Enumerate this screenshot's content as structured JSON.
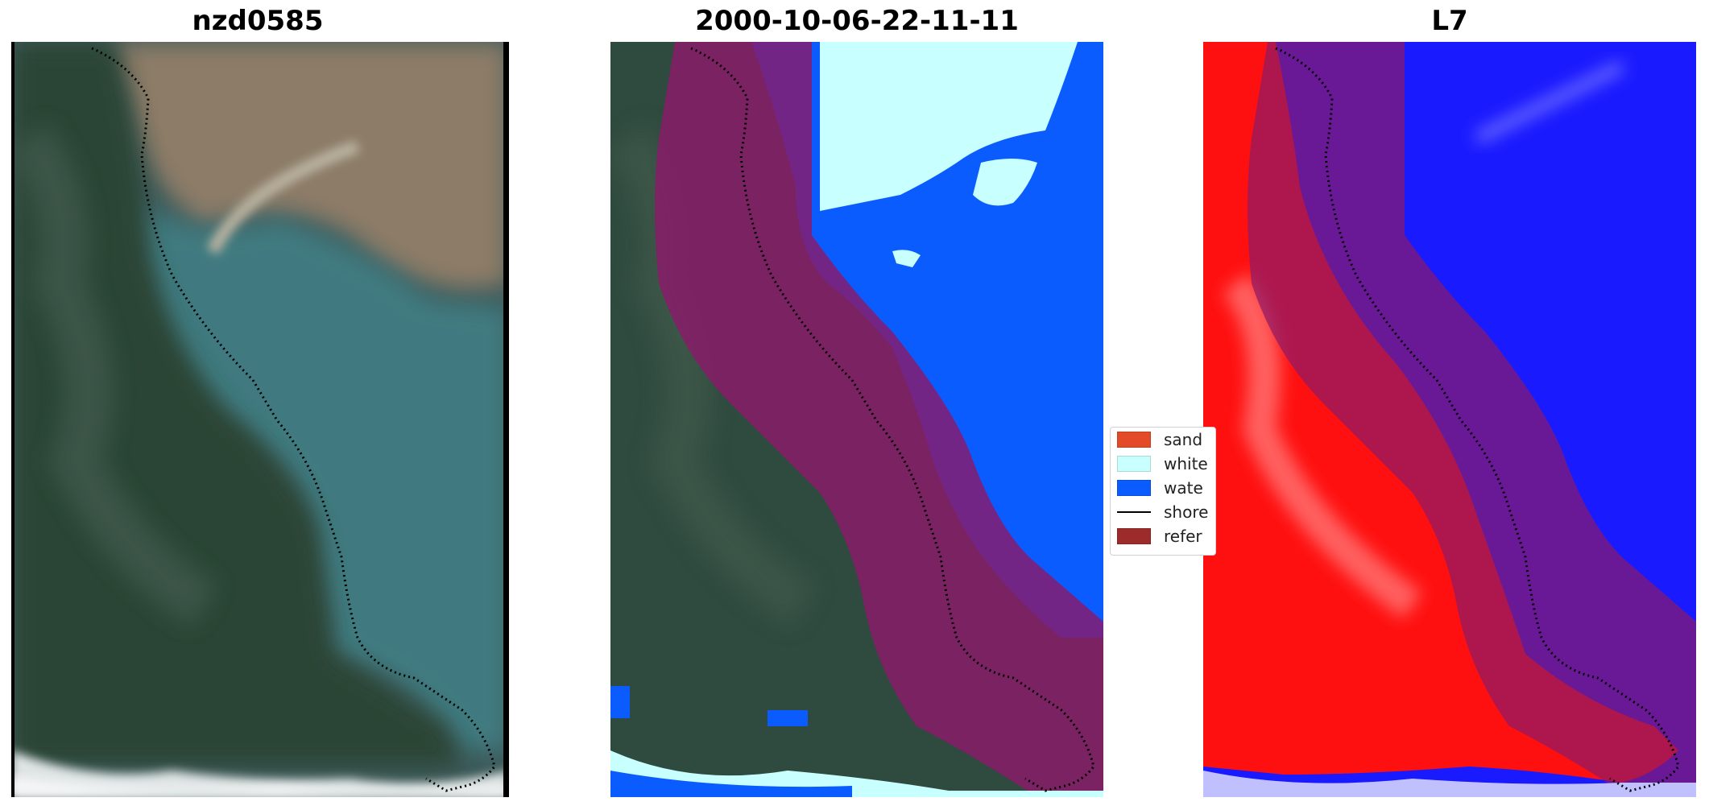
{
  "panels": {
    "left": {
      "title": "nzd0585"
    },
    "middle": {
      "title": "2000-10-06-22-11-11"
    },
    "right": {
      "title": "L7"
    }
  },
  "legend": {
    "items": [
      {
        "label": "sand",
        "color": "#e34a2a"
      },
      {
        "label": "white",
        "color": "#c8ffff"
      },
      {
        "label": "wate",
        "color": "#0a5cff"
      },
      {
        "label": "shore",
        "color": "#000000"
      },
      {
        "label": "refer",
        "color": "#9e2b2b"
      }
    ]
  },
  "colors": {
    "water_class": "#0a5cff",
    "whitewater_class": "#c8ffff",
    "reference_buffer": "#8b1a4a",
    "land_index": "#ff1010",
    "water_index": "#1a1aff"
  }
}
